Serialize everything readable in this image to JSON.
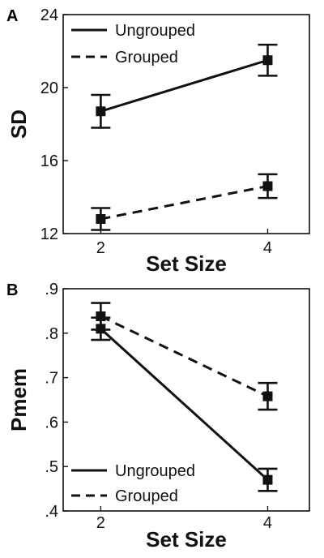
{
  "chart_data": [
    {
      "panel": "A",
      "type": "line",
      "ylabel": "SD",
      "xlabel": "Set Size",
      "x": [
        2,
        4
      ],
      "xticks": [
        "2",
        "4"
      ],
      "ylim": [
        12,
        24
      ],
      "yticks": [
        12,
        16,
        20,
        24
      ],
      "ytick_labels": [
        "12",
        "16",
        "20",
        "24"
      ],
      "legend": "top-left",
      "series": [
        {
          "name": "Ungrouped",
          "style": "solid",
          "values": [
            18.7,
            21.5
          ],
          "errors": [
            0.9,
            0.85
          ]
        },
        {
          "name": "Grouped",
          "style": "dashed",
          "values": [
            12.8,
            14.6
          ],
          "errors": [
            0.6,
            0.65
          ]
        }
      ]
    },
    {
      "panel": "B",
      "type": "line",
      "ylabel": "Pmem",
      "xlabel": "Set Size",
      "x": [
        2,
        4
      ],
      "xticks": [
        "2",
        "4"
      ],
      "ylim": [
        0.4,
        0.9
      ],
      "yticks": [
        0.4,
        0.5,
        0.6,
        0.7,
        0.8,
        0.9
      ],
      "ytick_labels": [
        ".4",
        ".5",
        ".6",
        ".7",
        ".8",
        ".9"
      ],
      "legend": "bottom-left",
      "series": [
        {
          "name": "Ungrouped",
          "style": "solid",
          "values": [
            0.81,
            0.47
          ],
          "errors": [
            0.025,
            0.025
          ]
        },
        {
          "name": "Grouped",
          "style": "dashed",
          "values": [
            0.838,
            0.658
          ],
          "errors": [
            0.03,
            0.03
          ]
        }
      ]
    }
  ],
  "colors": {
    "ink": "#111111",
    "background": "#ffffff"
  }
}
